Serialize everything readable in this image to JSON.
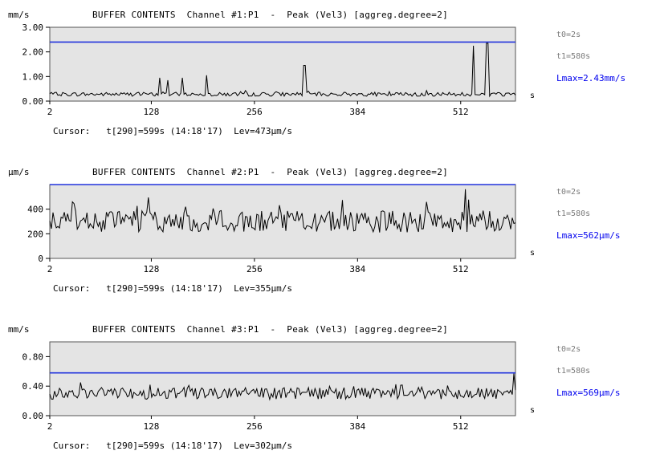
{
  "colors": {
    "plot_bg": "#e4e4e4",
    "trace": "#000000",
    "threshold": "#2233dd",
    "lmax": "#0000ee",
    "info": "#7a7a7a"
  },
  "chart_data": [
    {
      "type": "line",
      "unit": "mm/s",
      "title": "BUFFER CONTENTS  Channel #1:P1  -  Peak (Vel3) [aggreg.degree=2]",
      "x_ticks": [
        "2",
        "128",
        "256",
        "384",
        "512"
      ],
      "x_unit": "s",
      "y_ticks": [
        "3.00",
        "2.00",
        "1.00",
        "0.00"
      ],
      "ylim": [
        0,
        3
      ],
      "xlim": [
        2,
        580
      ],
      "threshold": 2.4,
      "info": {
        "t0": "t0=2s",
        "t1": "t1=580s",
        "lmax": "Lmax=2.43mm/s"
      },
      "cursor": "Cursor:   t[290]=599s (14:18'17)  Lev=473µm/s",
      "series": [
        {
          "base": 0.28,
          "noise": 0.08,
          "spikes": [
            [
              138,
              0.95
            ],
            [
              148,
              0.85
            ],
            [
              167,
              0.95
            ],
            [
              196,
              1.05
            ],
            [
              318,
              1.45
            ],
            [
              528,
              2.25
            ],
            [
              545,
              2.35
            ]
          ]
        }
      ]
    },
    {
      "type": "line",
      "unit": "µm/s",
      "title": "BUFFER CONTENTS  Channel #2:P1  -  Peak (Vel3) [aggreg.degree=2]",
      "x_ticks": [
        "2",
        "128",
        "256",
        "384",
        "512"
      ],
      "x_unit": "s",
      "y_ticks": [
        "400",
        "200",
        "0"
      ],
      "ylim": [
        0,
        600
      ],
      "xlim": [
        2,
        580
      ],
      "threshold": 600,
      "info": {
        "t0": "t0=2s",
        "t1": "t1=580s",
        "lmax": "Lmax=562µm/s"
      },
      "cursor": "Cursor:   t[290]=599s (14:18'17)  Lev=355µm/s",
      "series": [
        {
          "base": 300,
          "noise": 90,
          "spikes": [
            [
              518,
              562
            ],
            [
              30,
              460
            ],
            [
              170,
              420
            ]
          ]
        }
      ]
    },
    {
      "type": "line",
      "unit": "mm/s",
      "title": "BUFFER CONTENTS  Channel #3:P1  -  Peak (Vel3) [aggreg.degree=2]",
      "x_ticks": [
        "2",
        "128",
        "256",
        "384",
        "512"
      ],
      "x_unit": "s",
      "y_ticks": [
        "0.80",
        "0.40",
        "0.00"
      ],
      "ylim": [
        0,
        1
      ],
      "xlim": [
        2,
        580
      ],
      "threshold": 0.58,
      "info": {
        "t0": "t0=2s",
        "t1": "t1=580s",
        "lmax": "Lmax=569µm/s"
      },
      "cursor": "Cursor:   t[290]=599s (14:18'17)  Lev=302µm/s",
      "series": [
        {
          "base": 0.3,
          "noise": 0.08,
          "spikes": [
            [
              578,
              0.57
            ],
            [
              40,
              0.45
            ]
          ]
        }
      ]
    }
  ]
}
